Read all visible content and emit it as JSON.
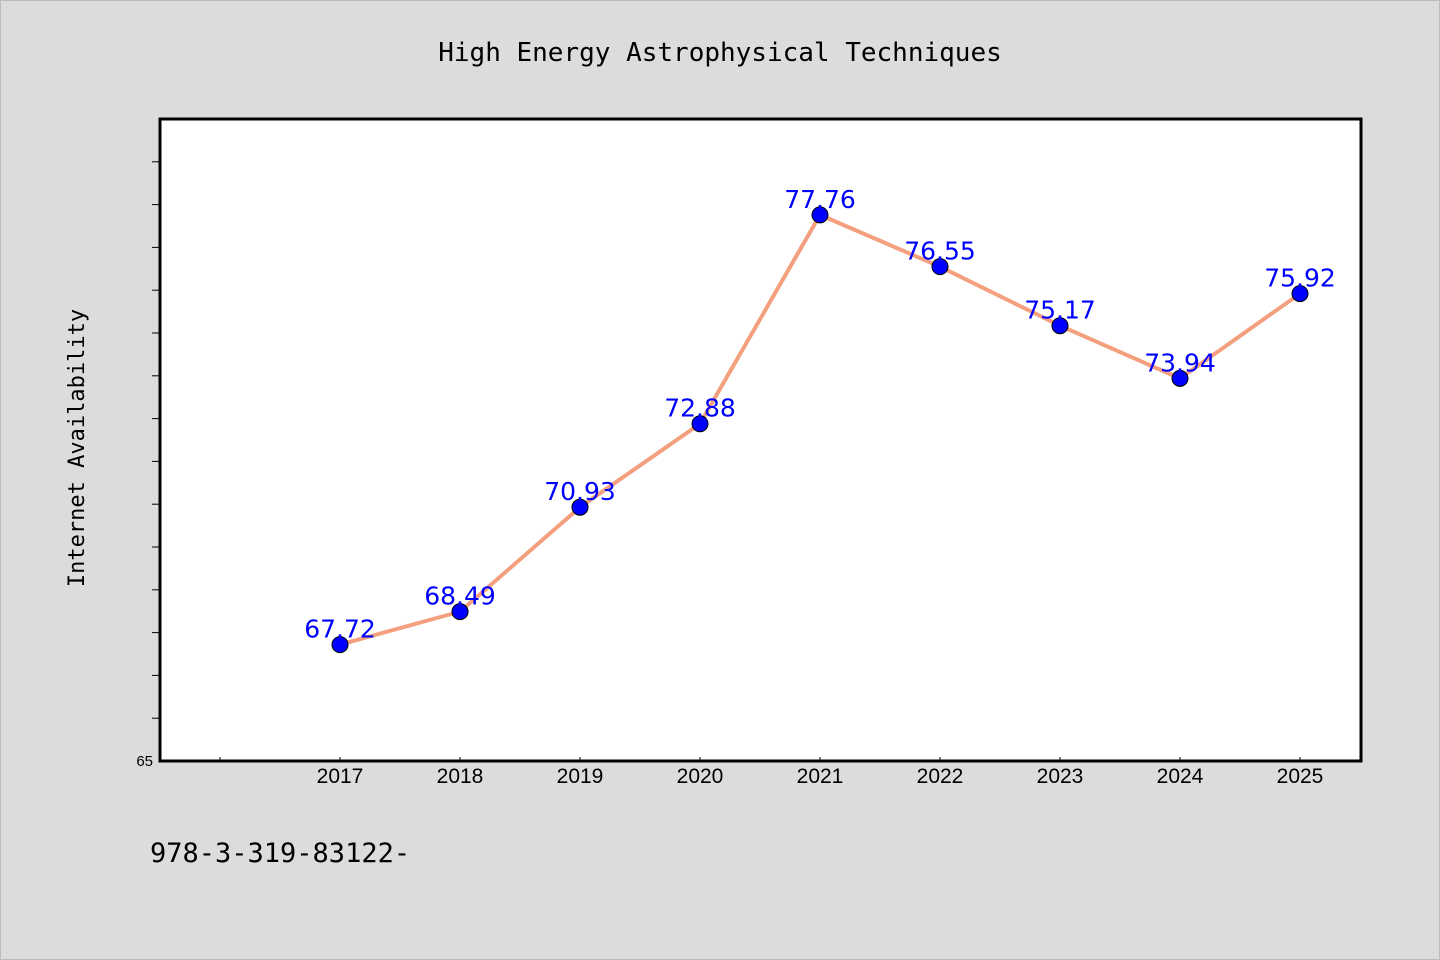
{
  "chart_data": {
    "type": "line",
    "title": "High Energy Astrophysical Techniques",
    "ylabel": "Internet Availability",
    "xlabel": "",
    "categories": [
      "2017",
      "2018",
      "2019",
      "2020",
      "2021",
      "2022",
      "2023",
      "2024",
      "2025"
    ],
    "series": [
      {
        "values": [
          67.72,
          68.49,
          70.93,
          72.88,
          77.76,
          76.55,
          75.17,
          73.94,
          75.92
        ],
        "value_labels": [
          "67.72",
          "68.49",
          "70.93",
          "72.88",
          "77.76",
          "76.55",
          "75.17",
          "73.94",
          "75.92"
        ]
      }
    ],
    "ylim": [
      65,
      80
    ],
    "y_tick_labels": [
      "65"
    ],
    "grid": false,
    "line_color": "#f4a07e",
    "marker_color": "#0000ff",
    "label_color": "#0000ff",
    "plot_background": "#ffffff",
    "figure_background": "#dcdcdc"
  },
  "footer": {
    "text": "978-3-319-83122-"
  }
}
